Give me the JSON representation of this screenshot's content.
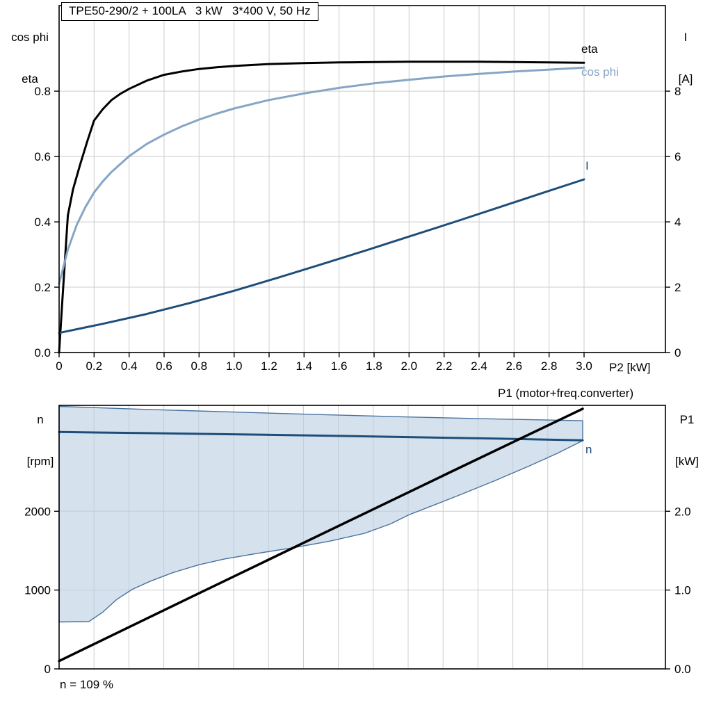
{
  "colors": {
    "black": "#000000",
    "dark_blue": "#1d4e79",
    "light_blue": "#86a5c5",
    "region_fill": "#b9cde0",
    "region_stroke": "#48719f",
    "grid": "#cccccc",
    "frame": "#000000",
    "background": "#ffffff"
  },
  "title_box": {
    "text": "TPE50-290/2 + 100LA   3 kW   3*400 V, 50 Hz"
  },
  "axis_labels": {
    "top_left_line1": "cos phi",
    "top_left_line2": "eta",
    "top_right_line1": "I",
    "top_right_line2": "[A]",
    "x_label": "P2 [kW]",
    "bottom_left_line1": "n",
    "bottom_left_line2": "[rpm]",
    "bottom_right_line1": "P1",
    "bottom_right_line2": "[kW]"
  },
  "curve_labels": {
    "eta": "eta",
    "cos_phi": "cos phi",
    "current": "I",
    "speed": "n",
    "p1": "P1 (motor+freq.converter)"
  },
  "annotation": {
    "speed_note": "n = 109 %"
  },
  "chart_data": [
    {
      "id": "top",
      "type": "line",
      "title": "TPE50-290/2 + 100LA   3 kW   3*400 V, 50 Hz",
      "x_axis": {
        "label": "P2 [kW]",
        "min": 0,
        "data_max": 3.0,
        "ticks": [
          {
            "v": 0,
            "l": "0"
          },
          {
            "v": 0.2,
            "l": "0.2"
          },
          {
            "v": 0.4,
            "l": "0.4"
          },
          {
            "v": 0.6,
            "l": "0.6"
          },
          {
            "v": 0.8,
            "l": "0.8"
          },
          {
            "v": 1.0,
            "l": "1.0"
          },
          {
            "v": 1.2,
            "l": "1.2"
          },
          {
            "v": 1.4,
            "l": "1.4"
          },
          {
            "v": 1.6,
            "l": "1.6"
          },
          {
            "v": 1.8,
            "l": "1.8"
          },
          {
            "v": 2.0,
            "l": "2.0"
          },
          {
            "v": 2.2,
            "l": "2.2"
          },
          {
            "v": 2.4,
            "l": "2.4"
          },
          {
            "v": 2.6,
            "l": "2.6"
          },
          {
            "v": 2.8,
            "l": "2.8"
          },
          {
            "v": 3.0,
            "l": "3.0"
          }
        ]
      },
      "y_left": {
        "label": "cos phi / eta",
        "min": 0,
        "max": 1.062,
        "ticks": [
          {
            "v": 0,
            "l": "0.0"
          },
          {
            "v": 0.2,
            "l": "0.2"
          },
          {
            "v": 0.4,
            "l": "0.4"
          },
          {
            "v": 0.6,
            "l": "0.6"
          },
          {
            "v": 0.8,
            "l": "0.8"
          }
        ]
      },
      "y_right": {
        "label": "I [A]",
        "min": 0,
        "max": 10.62,
        "ticks": [
          {
            "v": 0,
            "l": "0"
          },
          {
            "v": 2,
            "l": "2"
          },
          {
            "v": 4,
            "l": "4"
          },
          {
            "v": 6,
            "l": "6"
          },
          {
            "v": 8,
            "l": "8"
          }
        ]
      },
      "series": [
        {
          "name": "eta",
          "axis": "left",
          "color": "#000000",
          "width": 3,
          "points": [
            [
              0,
              0
            ],
            [
              0.02,
              0.17
            ],
            [
              0.05,
              0.42
            ],
            [
              0.08,
              0.5
            ],
            [
              0.12,
              0.575
            ],
            [
              0.16,
              0.645
            ],
            [
              0.2,
              0.71
            ],
            [
              0.25,
              0.745
            ],
            [
              0.3,
              0.773
            ],
            [
              0.35,
              0.792
            ],
            [
              0.4,
              0.807
            ],
            [
              0.5,
              0.832
            ],
            [
              0.6,
              0.85
            ],
            [
              0.7,
              0.86
            ],
            [
              0.8,
              0.868
            ],
            [
              0.9,
              0.873
            ],
            [
              1.0,
              0.877
            ],
            [
              1.2,
              0.883
            ],
            [
              1.4,
              0.886
            ],
            [
              1.6,
              0.888
            ],
            [
              1.8,
              0.889
            ],
            [
              2.0,
              0.89
            ],
            [
              2.2,
              0.89
            ],
            [
              2.4,
              0.89
            ],
            [
              2.6,
              0.889
            ],
            [
              2.8,
              0.888
            ],
            [
              3.0,
              0.887
            ]
          ]
        },
        {
          "name": "cos phi",
          "axis": "left",
          "color": "#86a5c5",
          "width": 3,
          "points": [
            [
              0,
              0.21
            ],
            [
              0.05,
              0.315
            ],
            [
              0.1,
              0.39
            ],
            [
              0.15,
              0.445
            ],
            [
              0.2,
              0.49
            ],
            [
              0.25,
              0.524
            ],
            [
              0.3,
              0.553
            ],
            [
              0.4,
              0.601
            ],
            [
              0.5,
              0.638
            ],
            [
              0.6,
              0.667
            ],
            [
              0.7,
              0.692
            ],
            [
              0.8,
              0.713
            ],
            [
              0.9,
              0.731
            ],
            [
              1.0,
              0.747
            ],
            [
              1.2,
              0.773
            ],
            [
              1.4,
              0.793
            ],
            [
              1.6,
              0.81
            ],
            [
              1.8,
              0.824
            ],
            [
              2.0,
              0.835
            ],
            [
              2.2,
              0.845
            ],
            [
              2.4,
              0.853
            ],
            [
              2.6,
              0.86
            ],
            [
              2.8,
              0.866
            ],
            [
              3.0,
              0.872
            ]
          ]
        },
        {
          "name": "I",
          "axis": "right",
          "color": "#1d4e79",
          "width": 3,
          "points": [
            [
              0,
              0.6
            ],
            [
              0.25,
              0.88
            ],
            [
              0.5,
              1.18
            ],
            [
              0.75,
              1.52
            ],
            [
              1.0,
              1.89
            ],
            [
              1.25,
              2.29
            ],
            [
              1.5,
              2.7
            ],
            [
              1.75,
              3.12
            ],
            [
              2.0,
              3.55
            ],
            [
              2.25,
              3.98
            ],
            [
              2.5,
              4.42
            ],
            [
              2.75,
              4.86
            ],
            [
              3.0,
              5.3
            ]
          ]
        }
      ]
    },
    {
      "id": "bottom",
      "type": "line",
      "title": "",
      "x_axis": {
        "label": "",
        "min": 0,
        "data_max": 3.0,
        "ticks": [
          {
            "v": 0.2,
            "l": ""
          },
          {
            "v": 0.4,
            "l": ""
          },
          {
            "v": 0.6,
            "l": ""
          },
          {
            "v": 0.8,
            "l": ""
          },
          {
            "v": 1.0,
            "l": ""
          },
          {
            "v": 1.2,
            "l": ""
          },
          {
            "v": 1.4,
            "l": ""
          },
          {
            "v": 1.6,
            "l": ""
          },
          {
            "v": 1.8,
            "l": ""
          },
          {
            "v": 2.0,
            "l": ""
          },
          {
            "v": 2.2,
            "l": ""
          },
          {
            "v": 2.4,
            "l": ""
          },
          {
            "v": 2.6,
            "l": ""
          },
          {
            "v": 2.8,
            "l": ""
          },
          {
            "v": 3.0,
            "l": ""
          }
        ]
      },
      "y_left": {
        "label": "n [rpm]",
        "min": 0,
        "max": 3343,
        "ticks": [
          {
            "v": 0,
            "l": "0"
          },
          {
            "v": 1000,
            "l": "1000"
          },
          {
            "v": 2000,
            "l": "2000"
          }
        ]
      },
      "y_right": {
        "label": "P1 [kW]",
        "min": 0,
        "max": 3.343,
        "ticks": [
          {
            "v": 0,
            "l": "0.0"
          },
          {
            "v": 1,
            "l": "1.0"
          },
          {
            "v": 2,
            "l": "2.0"
          }
        ]
      },
      "region": {
        "name": "speed-control-range",
        "fill": "#b9cde0",
        "fill_opacity": 0.6,
        "stroke": "#48719f",
        "lower": [
          [
            0,
            595
          ],
          [
            0.17,
            600
          ],
          [
            0.25,
            720
          ],
          [
            0.33,
            880
          ],
          [
            0.42,
            1010
          ],
          [
            0.52,
            1110
          ],
          [
            0.65,
            1220
          ],
          [
            0.8,
            1320
          ],
          [
            0.95,
            1395
          ],
          [
            1.15,
            1470
          ],
          [
            1.35,
            1540
          ],
          [
            1.55,
            1620
          ],
          [
            1.75,
            1720
          ],
          [
            1.9,
            1840
          ],
          [
            2.0,
            1950
          ],
          [
            2.15,
            2080
          ],
          [
            2.3,
            2210
          ],
          [
            2.5,
            2390
          ],
          [
            2.7,
            2580
          ],
          [
            2.85,
            2730
          ],
          [
            3.0,
            2895
          ]
        ],
        "upper": [
          [
            0,
            3330
          ],
          [
            0.5,
            3292
          ],
          [
            1.0,
            3258
          ],
          [
            1.5,
            3226
          ],
          [
            2.0,
            3196
          ],
          [
            2.5,
            3170
          ],
          [
            3.0,
            3148
          ]
        ]
      },
      "series": [
        {
          "name": "n",
          "axis": "left",
          "color": "#1d4e79",
          "width": 3,
          "points": [
            [
              0,
              3005
            ],
            [
              0.5,
              2991
            ],
            [
              1.0,
              2976
            ],
            [
              1.5,
              2959
            ],
            [
              2.0,
              2941
            ],
            [
              2.5,
              2921
            ],
            [
              3.0,
              2899
            ]
          ]
        },
        {
          "name": "P1 (motor+freq.converter)",
          "axis": "right",
          "color": "#000000",
          "width": 3.5,
          "points": [
            [
              0,
              0.1
            ],
            [
              0.75,
              0.905
            ],
            [
              1.5,
              1.705
            ],
            [
              2.25,
              2.505
            ],
            [
              3.0,
              3.3
            ]
          ]
        }
      ],
      "annotation": "n = 109 %"
    }
  ]
}
